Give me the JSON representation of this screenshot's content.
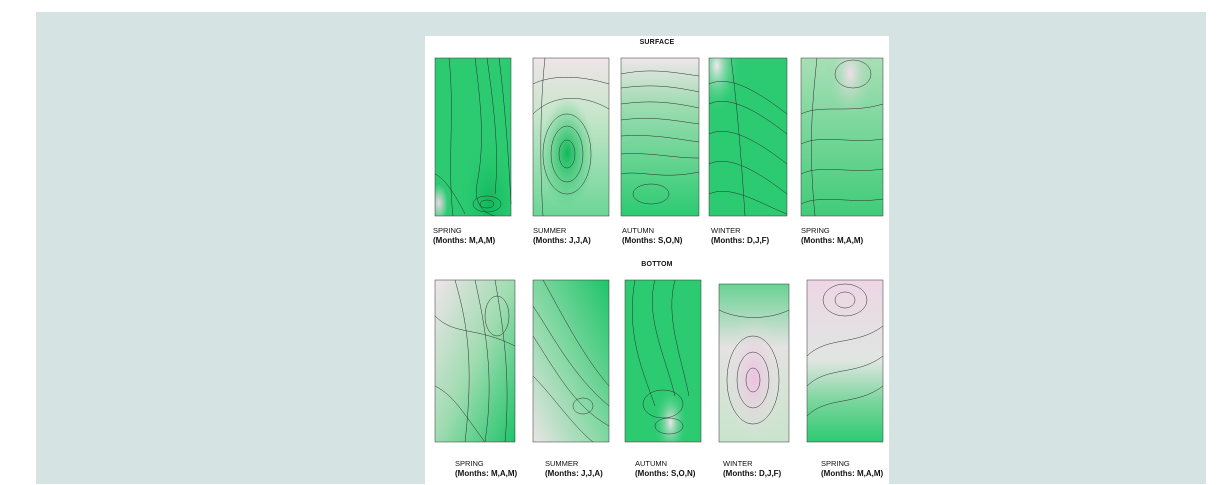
{
  "figure": {
    "surface_title": "SURFACE",
    "bottom_title": "BOTTOM",
    "surface_panels": [
      {
        "season": "SPRING",
        "months": "(Months: M,A,M)"
      },
      {
        "season": "SUMMER",
        "months": "(Months: J,J,A)"
      },
      {
        "season": "AUTUMN",
        "months": "(Months: S,O,N)"
      },
      {
        "season": "WINTER",
        "months": "(Months: D,J,F)"
      },
      {
        "season": "SPRING",
        "months": "(Months: M,A,M)"
      }
    ],
    "bottom_panels": [
      {
        "season": "SPRING",
        "months": "(Months: M,A,M)"
      },
      {
        "season": "SUMMER",
        "months": "(Months: J,J,A)"
      },
      {
        "season": "AUTUMN",
        "months": "(Months: S,O,N)"
      },
      {
        "season": "WINTER",
        "months": "(Months: D,J,F)"
      },
      {
        "season": "SPRING",
        "months": "(Months: M,A,M)"
      }
    ],
    "colors": {
      "green_dark": "#1fc46a",
      "green_light": "#8ad9a6",
      "pale": "#ece6e8",
      "pink": "#e8b8d8",
      "contour": "#2d2d2d"
    }
  }
}
